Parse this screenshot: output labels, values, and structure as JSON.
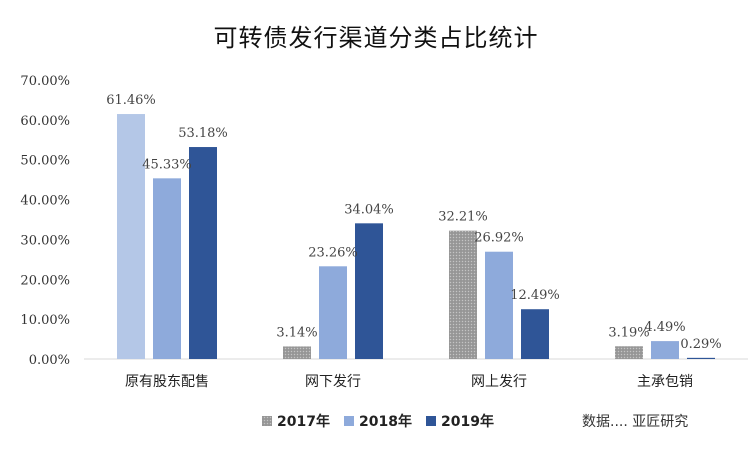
{
  "chart_data": {
    "type": "bar",
    "title": "可转债发行渠道分类占比统计",
    "categories": [
      "原有股东配售",
      "网下发行",
      "网上发行",
      "主承包销"
    ],
    "series": [
      {
        "name": "2017年",
        "color": "#a5a5a5",
        "pattern": "dots",
        "values": [
          61.46,
          3.14,
          32.21,
          3.19
        ],
        "labels": [
          "61.46%",
          "3.14%",
          "32.21%",
          "3.19%"
        ]
      },
      {
        "name": "2018年",
        "color": "#8eaadb",
        "pattern": "none",
        "values": [
          45.33,
          23.26,
          26.92,
          4.49
        ],
        "labels": [
          "45.33%",
          "23.26%",
          "26.92%",
          "4.49%"
        ]
      },
      {
        "name": "2019年",
        "color": "#2f5597",
        "pattern": "none",
        "values": [
          53.18,
          34.04,
          12.49,
          0.29
        ],
        "labels": [
          "53.18%",
          "34.04%",
          "12.49%",
          "0.29%"
        ]
      }
    ],
    "first_category_2017_color": "#b4c7e7",
    "ylim": [
      0,
      70
    ],
    "yticks": [
      0,
      10,
      20,
      30,
      40,
      50,
      60,
      70
    ],
    "ytick_labels": [
      "0.00%",
      "10.00%",
      "20.00%",
      "30.00%",
      "40.00%",
      "50.00%",
      "60.00%",
      "70.00%"
    ],
    "xlabel": "",
    "ylabel": "",
    "grid": false,
    "legend_position": "bottom"
  },
  "watermark": "数据.... 亚匠研究"
}
